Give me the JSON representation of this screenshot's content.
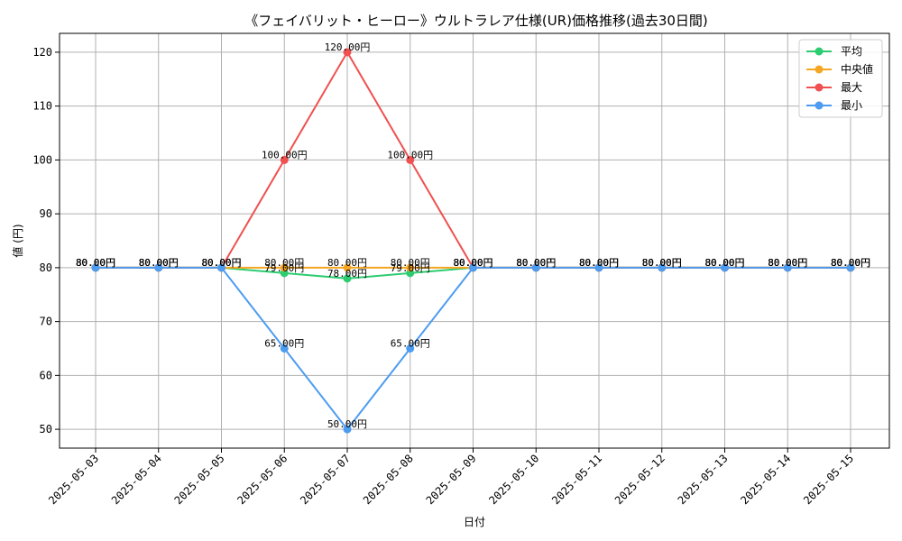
{
  "chart_data": {
    "type": "line",
    "title": "《フェイバリット・ヒーロー》ウルトラレア仕様(UR)価格推移(過去30日間)",
    "xlabel": "日付",
    "ylabel": "値 (円)",
    "ylim": [
      46.5,
      123.5
    ],
    "yticks": [
      50,
      60,
      70,
      80,
      90,
      100,
      110,
      120
    ],
    "grid": true,
    "legend_position": "top-right",
    "value_suffix": "円",
    "categories": [
      "2025-05-03",
      "2025-05-04",
      "2025-05-05",
      "2025-05-06",
      "2025-05-07",
      "2025-05-08",
      "2025-05-09",
      "2025-05-10",
      "2025-05-11",
      "2025-05-12",
      "2025-05-13",
      "2025-05-14",
      "2025-05-15"
    ],
    "series": [
      {
        "name": "平均",
        "color": "#2ecc71",
        "values": [
          80,
          80,
          80,
          79,
          78,
          79,
          80,
          80,
          80,
          80,
          80,
          80,
          80
        ]
      },
      {
        "name": "中央値",
        "color": "#f5a623",
        "values": [
          80,
          80,
          80,
          80,
          80,
          80,
          80,
          80,
          80,
          80,
          80,
          80,
          80
        ]
      },
      {
        "name": "最大",
        "color": "#f05050",
        "values": [
          80,
          80,
          80,
          100,
          120,
          100,
          80,
          80,
          80,
          80,
          80,
          80,
          80
        ]
      },
      {
        "name": "最小",
        "color": "#4d9cf0",
        "values": [
          80,
          80,
          80,
          65,
          50,
          65,
          80,
          80,
          80,
          80,
          80,
          80,
          80
        ]
      }
    ]
  }
}
